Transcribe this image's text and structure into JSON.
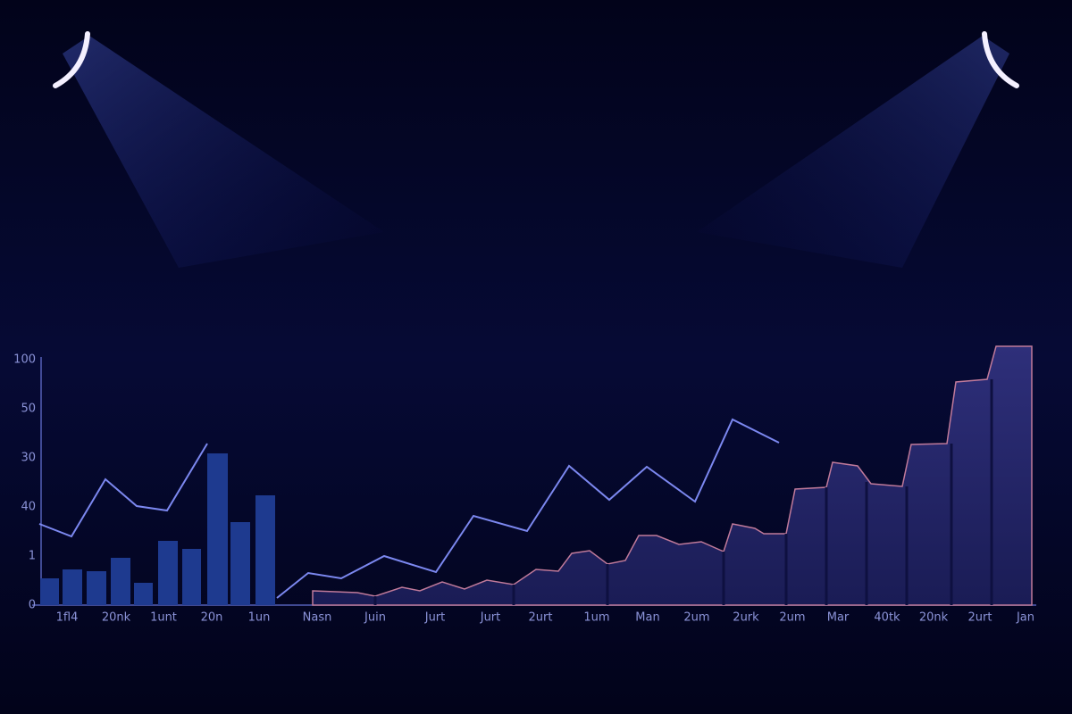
{
  "y_axis_labels": [
    "100",
    "50",
    "30",
    "40",
    "1",
    "0"
  ],
  "x_axis_labels": [
    "1fl4",
    "20nk",
    "1unt",
    "20n",
    "1un",
    "Nasn",
    "Juin",
    "Jurt",
    "Jurt",
    "2urt",
    "1um",
    "Man",
    "2um",
    "2urk",
    "2um",
    "Mar",
    "40tk",
    "20nk",
    "2urt",
    "Jan"
  ]
}
